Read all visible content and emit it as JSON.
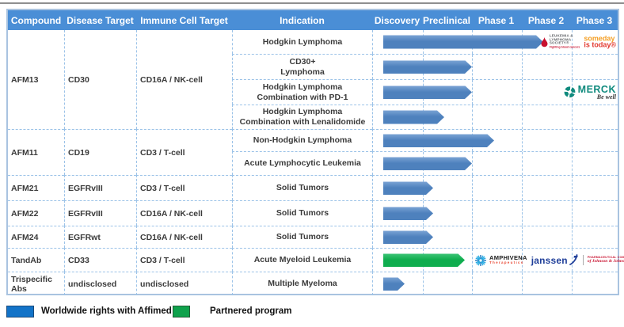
{
  "colors": {
    "header_bg": "#4a8ed6",
    "bar_blue": "#4e81bd",
    "bar_green": "#0fad4e",
    "legend_blue": "#1273c8",
    "legend_green": "#0fa24c",
    "grid_dash": "#9cc3e8",
    "table_border": "#a9c3e0",
    "top_rule": "#8f8f8f"
  },
  "header": {
    "columns": [
      "Compound",
      "Disease Target",
      "Immune Cell Target",
      "Indication",
      "Discovery",
      "Preclinical",
      "Phase 1",
      "Phase 2",
      "Phase 3"
    ]
  },
  "groups": [
    {
      "compound": "AFM13",
      "disease_target": "CD30",
      "immune_cell_target": "CD16A / NK-cell",
      "rows": [
        {
          "indication": "Hodgkin Lymphoma",
          "bar": {
            "start": 13,
            "end": 215,
            "color": "blue"
          },
          "logos": [
            "lls",
            "someday"
          ]
        },
        {
          "indication": "CD30+\nLymphoma",
          "bar": {
            "start": 13,
            "end": 125,
            "color": "blue"
          },
          "logos": []
        },
        {
          "indication": "Hodgkin Lymphoma\nCombination with PD-1",
          "bar": {
            "start": 13,
            "end": 125,
            "color": "blue"
          },
          "logos": [
            "merck"
          ]
        },
        {
          "indication": "Hodgkin Lymphoma\nCombination with Lenalidomide",
          "bar": {
            "start": 13,
            "end": 90,
            "color": "blue"
          },
          "logos": []
        }
      ]
    },
    {
      "compound": "AFM11",
      "disease_target": "CD19",
      "immune_cell_target": "CD3 / T-cell",
      "rows": [
        {
          "indication": "Non-Hodgkin Lymphoma",
          "bar": {
            "start": 13,
            "end": 153,
            "color": "blue"
          },
          "logos": []
        },
        {
          "indication": "Acute Lymphocytic Leukemia",
          "bar": {
            "start": 13,
            "end": 125,
            "color": "blue"
          },
          "logos": []
        }
      ]
    },
    {
      "compound": "AFM21",
      "disease_target": "EGFRvIII",
      "immune_cell_target": "CD3 / T-cell",
      "rows": [
        {
          "indication": "Solid Tumors",
          "bar": {
            "start": 13,
            "end": 76,
            "color": "blue"
          },
          "logos": []
        }
      ]
    },
    {
      "compound": "AFM22",
      "disease_target": "EGFRvIII",
      "immune_cell_target": "CD16A / NK-cell",
      "rows": [
        {
          "indication": "Solid Tumors",
          "bar": {
            "start": 13,
            "end": 76,
            "color": "blue"
          },
          "logos": []
        }
      ]
    },
    {
      "compound": "AFM24",
      "disease_target": "EGFRwt",
      "immune_cell_target": "CD16A / NK-cell",
      "rows": [
        {
          "indication": "Solid Tumors",
          "bar": {
            "start": 13,
            "end": 76,
            "color": "blue"
          },
          "logos": []
        }
      ]
    },
    {
      "compound": "TandAb",
      "disease_target": "CD33",
      "immune_cell_target": "CD3 / T-cell",
      "rows": [
        {
          "indication": "Acute Myeloid Leukemia",
          "bar": {
            "start": 13,
            "end": 116,
            "color": "green"
          },
          "logos": [
            "amphivena",
            "janssen"
          ]
        }
      ]
    },
    {
      "compound": "Trispecific Abs",
      "disease_target": "undisclosed",
      "immune_cell_target": "undisclosed",
      "rows": [
        {
          "indication": "Multiple Myeloma",
          "bar": {
            "start": 13,
            "end": 40,
            "color": "blue"
          },
          "logos": []
        }
      ]
    }
  ],
  "logos": {
    "lls": {
      "line1": "LEUKEMIA &",
      "line2": "LYMPHOMA",
      "line3": "SOCIETY®",
      "tagline": "Fighting blood cancers"
    },
    "someday": {
      "line1": "someday",
      "line2": "is today®"
    },
    "merck": {
      "name": "MERCK",
      "tagline": "Be well"
    },
    "amphivena": {
      "name": "AMPHIVENA",
      "tagline": "Therapeutics"
    },
    "janssen": {
      "name": "janssen",
      "sub1": "PHARMACEUTICAL COMPANIES",
      "sub2": "of Johnson & Johnson"
    }
  },
  "legend": [
    {
      "color": "blue",
      "label": "Worldwide rights with Affimed"
    },
    {
      "color": "green",
      "label": "Partnered program"
    }
  ],
  "chart_data": {
    "type": "table",
    "subtype": "pipeline-gantt",
    "phase_columns": [
      "Discovery",
      "Preclinical",
      "Phase 1",
      "Phase 2",
      "Phase 3"
    ],
    "phase_scale_note": "progress in phase units: 0=start Discovery, 1=start Preclinical, 2=start Phase 1, 3=start Phase 2, 4=start Phase 3",
    "programs": [
      {
        "compound": "AFM13",
        "indication": "Hodgkin Lymphoma",
        "progress": 3.4,
        "partnered": false
      },
      {
        "compound": "AFM13",
        "indication": "CD30+ Lymphoma",
        "progress": 2.0,
        "partnered": false
      },
      {
        "compound": "AFM13",
        "indication": "Hodgkin Lymphoma Combination with PD-1",
        "progress": 2.0,
        "partnered": false
      },
      {
        "compound": "AFM13",
        "indication": "Hodgkin Lymphoma Combination with Lenalidomide",
        "progress": 1.4,
        "partnered": false
      },
      {
        "compound": "AFM11",
        "indication": "Non-Hodgkin Lymphoma",
        "progress": 2.4,
        "partnered": false
      },
      {
        "compound": "AFM11",
        "indication": "Acute Lymphocytic Leukemia",
        "progress": 2.0,
        "partnered": false
      },
      {
        "compound": "AFM21",
        "indication": "Solid Tumors",
        "progress": 1.2,
        "partnered": false
      },
      {
        "compound": "AFM22",
        "indication": "Solid Tumors",
        "progress": 1.2,
        "partnered": false
      },
      {
        "compound": "AFM24",
        "indication": "Solid Tumors",
        "progress": 1.2,
        "partnered": false
      },
      {
        "compound": "TandAb",
        "indication": "Acute Myeloid Leukemia",
        "progress": 1.9,
        "partnered": true
      },
      {
        "compound": "Trispecific Abs",
        "indication": "Multiple Myeloma",
        "progress": 0.6,
        "partnered": false
      }
    ]
  }
}
